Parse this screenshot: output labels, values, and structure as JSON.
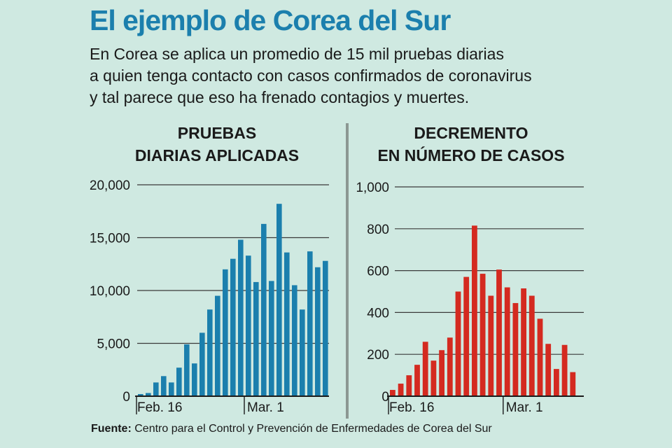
{
  "headline": "El ejemplo de Corea del Sur",
  "dek": [
    "En Corea se aplica un promedio de 15 mil pruebas diarias",
    "a quien tenga contacto con casos confirmados de coronavirus",
    "y tal parece que eso ha frenado contagios y muertes."
  ],
  "source": {
    "label": "Fuente:",
    "text": "Centro para el Control y Prevención de Enfermedades de Corea del Sur"
  },
  "chart_data": [
    {
      "type": "bar",
      "title_lines": [
        "PRUEBAS",
        "DIARIAS APLICADAS"
      ],
      "xlabel": "",
      "ylabel": "",
      "ylim": [
        0,
        20000
      ],
      "y_ticks": [
        0,
        5000,
        10000,
        15000,
        20000
      ],
      "y_tick_labels": [
        "0",
        "5,000",
        "10,000",
        "15,000",
        "20,000"
      ],
      "x_tick_labels": [
        {
          "label": "Feb. 16",
          "index": 0
        },
        {
          "label": "Mar. 1",
          "index": 14
        }
      ],
      "grid": true,
      "color": "#1b7fad",
      "values": [
        200,
        300,
        1300,
        1900,
        1300,
        2700,
        4900,
        3100,
        6000,
        8200,
        9500,
        12000,
        13000,
        14800,
        13300,
        10800,
        16300,
        10900,
        18200,
        13600,
        10500,
        8200,
        13700,
        12200,
        12800
      ]
    },
    {
      "type": "bar",
      "title_lines": [
        "DECREMENTO",
        "EN NÚMERO DE CASOS"
      ],
      "xlabel": "",
      "ylabel": "",
      "ylim": [
        0,
        1000
      ],
      "y_ticks": [
        0,
        200,
        400,
        600,
        800,
        1000
      ],
      "y_tick_labels": [
        "0",
        "200",
        "400",
        "600",
        "800",
        "1,000"
      ],
      "x_tick_labels": [
        {
          "label": "Feb. 16",
          "index": 0
        },
        {
          "label": "Mar. 1",
          "index": 14
        }
      ],
      "grid": true,
      "color": "#d42a20",
      "values": [
        30,
        60,
        100,
        150,
        260,
        170,
        220,
        280,
        500,
        570,
        815,
        585,
        480,
        605,
        520,
        445,
        515,
        480,
        370,
        250,
        130,
        245,
        115
      ]
    }
  ]
}
